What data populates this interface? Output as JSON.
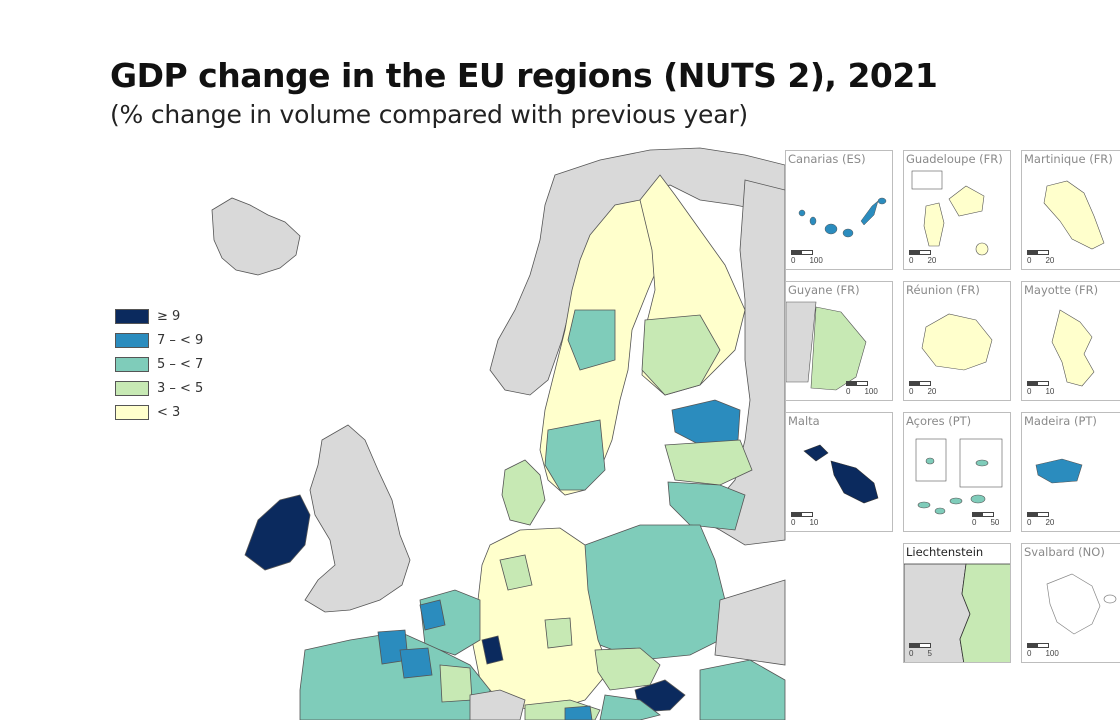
{
  "title": "GDP change in the EU regions (NUTS 2), 2021",
  "subtitle": "(% change in volume compared with previous year)",
  "legend": [
    {
      "label": "≥ 9",
      "color": "#0b2a5e"
    },
    {
      "label": "7 – < 9",
      "color": "#2b8cbe"
    },
    {
      "label": "5 – < 7",
      "color": "#7fccba"
    },
    {
      "label": "3 – < 5",
      "color": "#c7e9b4"
    },
    {
      "label": "< 3",
      "color": "#ffffcc"
    }
  ],
  "colors": {
    "non_eu": "#d9d9d9",
    "sea": "#ffffff",
    "border": "#333333"
  },
  "insets": [
    {
      "name": "canarias",
      "label": "Canarias (ES)",
      "scale": [
        "0",
        "100"
      ]
    },
    {
      "name": "guadeloupe",
      "label": "Guadeloupe (FR)",
      "scale": [
        "0",
        "20"
      ]
    },
    {
      "name": "martinique",
      "label": "Martinique (FR)",
      "scale": [
        "0",
        "20"
      ]
    },
    {
      "name": "guyane",
      "label": "Guyane (FR)",
      "scale": [
        "0",
        "100"
      ]
    },
    {
      "name": "reunion",
      "label": "Réunion (FR)",
      "scale": [
        "0",
        "20"
      ]
    },
    {
      "name": "mayotte",
      "label": "Mayotte (FR)",
      "scale": [
        "0",
        "10"
      ]
    },
    {
      "name": "malta",
      "label": "Malta",
      "scale": [
        "0",
        "10"
      ]
    },
    {
      "name": "acores",
      "label": "Açores (PT)",
      "scale": [
        "0",
        "50"
      ]
    },
    {
      "name": "madeira",
      "label": "Madeira (PT)",
      "scale": [
        "0",
        "20"
      ]
    },
    {
      "name": "liechtenstein",
      "label": "Liechtenstein",
      "scale": [
        "0",
        "5"
      ]
    },
    {
      "name": "svalbard",
      "label": "Svalbard (NO)",
      "scale": [
        "0",
        "100"
      ]
    }
  ]
}
